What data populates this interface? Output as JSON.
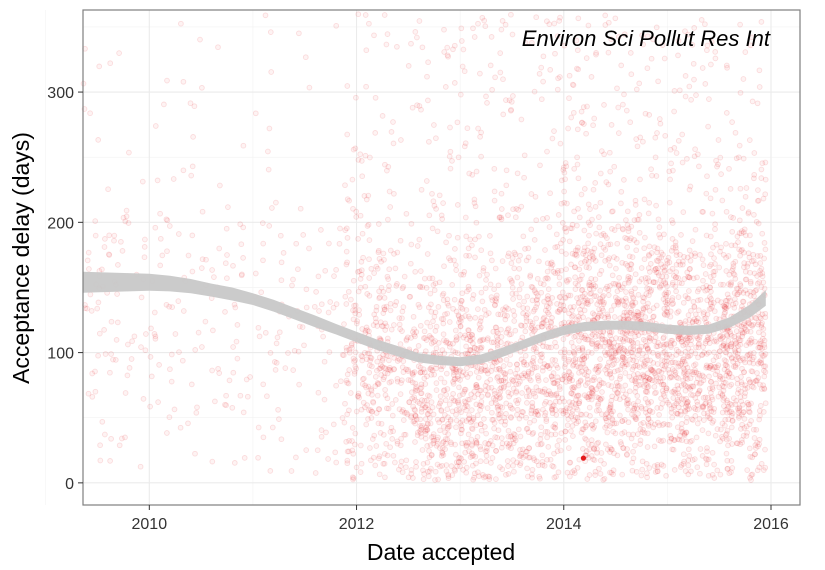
{
  "chart_data": {
    "type": "scatter",
    "annotation": "Environ Sci Pollut Res Int",
    "xlabel": "Date accepted",
    "ylabel": "Acceptance delay (days)",
    "xlim": [
      2009.36,
      2016.28
    ],
    "ylim": [
      -17,
      363
    ],
    "x_ticks": [
      2010,
      2012,
      2014,
      2016
    ],
    "x_tick_labels": [
      "2010",
      "2012",
      "2014",
      "2016"
    ],
    "y_ticks": [
      0,
      100,
      200,
      300
    ],
    "y_tick_labels": [
      "0",
      "100",
      "200",
      "300"
    ],
    "grid": true,
    "point_color": "#e31a1c",
    "point_opacity": 0.13,
    "highlight_point": {
      "x": 2014.19,
      "y": 19
    },
    "smooth_band": {
      "color": "#c8c8c8",
      "x": [
        2009.36,
        2009.6,
        2009.8,
        2010.0,
        2010.2,
        2010.4,
        2010.6,
        2010.8,
        2011.0,
        2011.2,
        2011.4,
        2011.6,
        2011.8,
        2012.0,
        2012.2,
        2012.4,
        2012.6,
        2012.8,
        2013.0,
        2013.2,
        2013.4,
        2013.6,
        2013.8,
        2014.0,
        2014.2,
        2014.4,
        2014.6,
        2014.8,
        2015.0,
        2015.2,
        2015.4,
        2015.6,
        2015.8,
        2015.95
      ],
      "mid": [
        154,
        154,
        154,
        154,
        153,
        151,
        148,
        145,
        141,
        136,
        130,
        124,
        118,
        112,
        106,
        101,
        96,
        94,
        93,
        95,
        100,
        106,
        112,
        117,
        120,
        121,
        121,
        120,
        118,
        117,
        118,
        123,
        132,
        142
      ],
      "half_width": [
        8,
        7.5,
        7,
        6.5,
        6,
        5.5,
        5,
        5,
        4.5,
        4.5,
        4.5,
        4.5,
        4,
        4,
        4,
        4,
        3.5,
        3.5,
        3.5,
        3.5,
        3.5,
        3.5,
        3.5,
        3.5,
        3.5,
        3.5,
        3.5,
        3.5,
        3.5,
        3.5,
        3.5,
        4,
        5,
        6
      ]
    }
  }
}
